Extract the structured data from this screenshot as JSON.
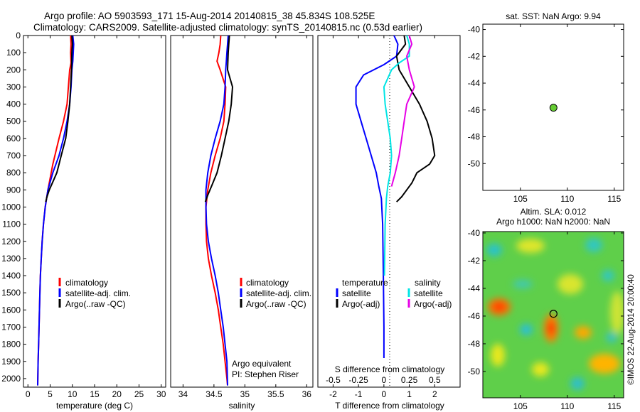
{
  "header": {
    "title_line1": "Argo profile: AO 5903593_171 15-Aug-2014 20140815_38 45.834S 108.525E",
    "title_line2": "Climatology: CARS2009. Satellite-adjusted climatology: synTS_20140815.nc (0.53d earlier)"
  },
  "chart_data": [
    {
      "id": "temperature",
      "type": "line",
      "xlabel": "temperature (deg C)",
      "ylabel": "",
      "xlim": [
        -1,
        31
      ],
      "ylim": [
        2050,
        0
      ],
      "xticks": [
        0,
        5,
        10,
        15,
        20,
        25,
        30
      ],
      "yticks": [
        0,
        100,
        200,
        300,
        400,
        500,
        600,
        700,
        800,
        900,
        1000,
        1100,
        1200,
        1300,
        1400,
        1500,
        1600,
        1700,
        1800,
        1900,
        2000
      ],
      "legend": [
        "climatology",
        "satellite-adj. clim.",
        "Argo(..raw -QC)"
      ],
      "series": [
        {
          "name": "climatology",
          "color": "#ff0000",
          "x": [
            9.6,
            9.7,
            9.6,
            9.7,
            9.4,
            8.8,
            8.0,
            7.0,
            5.6,
            4.5,
            3.9,
            3.5,
            3.2,
            3.0,
            2.8,
            2.7,
            2.6,
            2.5,
            2.4,
            2.3,
            2.2
          ],
          "y": [
            0,
            50,
            100,
            160,
            200,
            400,
            500,
            600,
            750,
            900,
            1000,
            1100,
            1200,
            1300,
            1400,
            1500,
            1600,
            1700,
            1800,
            1900,
            2040
          ]
        },
        {
          "name": "satellite-adj. clim.",
          "color": "#0000ff",
          "x": [
            10.1,
            10.3,
            10.2,
            10.1,
            9.9,
            9.7,
            9.4,
            8.8,
            8.0,
            7.0,
            5.6,
            4.5,
            3.9,
            3.5,
            3.2,
            3.0,
            2.8,
            2.7,
            2.6,
            2.5,
            2.4,
            2.3,
            2.2
          ],
          "y": [
            0,
            50,
            100,
            150,
            200,
            300,
            400,
            500,
            600,
            700,
            800,
            900,
            1000,
            1100,
            1200,
            1300,
            1400,
            1500,
            1600,
            1700,
            1800,
            1900,
            2040
          ]
        },
        {
          "name": "Argo(..raw -QC)",
          "color": "#000000",
          "x": [
            9.9,
            10.0,
            9.9,
            9.8,
            9.6,
            9.4,
            9.0,
            8.5,
            7.5,
            6.5,
            5.5,
            4.8,
            4.3,
            4.0
          ],
          "y": [
            0,
            50,
            100,
            200,
            300,
            400,
            500,
            600,
            700,
            800,
            860,
            900,
            940,
            970
          ]
        }
      ]
    },
    {
      "id": "salinity",
      "type": "line",
      "xlabel": "salinity",
      "xlim": [
        33.8,
        36.1
      ],
      "ylim": [
        2050,
        0
      ],
      "xticks": [
        34,
        34.5,
        35,
        35.5,
        36
      ],
      "legend": [
        "climatology",
        "satellite-adj. clim.",
        "Argo(..raw -QC)"
      ],
      "annotation": [
        "Argo equivalent",
        "PI: Stephen Riser"
      ],
      "series": [
        {
          "name": "climatology",
          "color": "#ff0000",
          "x": [
            34.61,
            34.6,
            34.58,
            34.55,
            34.6,
            34.69,
            34.68,
            34.66,
            34.6,
            34.52,
            34.45,
            34.4,
            34.37,
            34.37,
            34.38,
            34.41,
            34.46,
            34.52,
            34.57,
            34.61,
            34.65,
            34.68,
            34.71,
            34.72
          ],
          "y": [
            0,
            50,
            100,
            150,
            200,
            300,
            400,
            500,
            600,
            700,
            800,
            900,
            1000,
            1100,
            1200,
            1300,
            1400,
            1500,
            1600,
            1700,
            1800,
            1900,
            2000,
            2040
          ]
        },
        {
          "name": "satellite-adj. clim.",
          "color": "#0000ff",
          "x": [
            34.73,
            34.72,
            34.71,
            34.7,
            34.69,
            34.68,
            34.66,
            34.6,
            34.52,
            34.45,
            34.4,
            34.37,
            34.37,
            34.38,
            34.41,
            34.46,
            34.52,
            34.57,
            34.61,
            34.65,
            34.68,
            34.71,
            34.72
          ],
          "y": [
            0,
            50,
            100,
            150,
            200,
            300,
            400,
            500,
            600,
            700,
            800,
            900,
            1000,
            1100,
            1200,
            1300,
            1400,
            1500,
            1600,
            1700,
            1800,
            1900,
            2040
          ]
        },
        {
          "name": "Argo(..raw -QC)",
          "color": "#000000",
          "x": [
            34.75,
            34.74,
            34.73,
            34.72,
            34.76,
            34.8,
            34.78,
            34.74,
            34.68,
            34.62,
            34.55,
            34.47,
            34.4,
            34.36
          ],
          "y": [
            0,
            50,
            100,
            200,
            250,
            300,
            400,
            500,
            600,
            700,
            800,
            870,
            930,
            970
          ]
        }
      ]
    },
    {
      "id": "difference",
      "type": "line",
      "xlabel": "T difference from climatology",
      "x2label": "S difference from climatology",
      "xlim": [
        -2.6,
        3.0
      ],
      "ylim": [
        2050,
        0
      ],
      "xticks": [
        -2,
        -1,
        0,
        1,
        2
      ],
      "x2ticks": [
        "-0.5",
        "-0.25",
        "0",
        "0.25",
        "0.5"
      ],
      "legend_titles": [
        "temperature",
        "salinity"
      ],
      "legend": [
        "satellite",
        "Argo(-adj)",
        "satellite",
        "Argo(-adj)"
      ],
      "series": [
        {
          "name": "satellite",
          "group": "temperature",
          "color": "#0000ff",
          "x": [
            0.4,
            0.55,
            0.5,
            0.0,
            -0.8,
            -1.1,
            -1.1,
            -0.9,
            -0.7,
            -0.5,
            -0.3,
            -0.2,
            -0.1,
            -0.05,
            -0.02,
            0.0,
            0.0
          ],
          "y": [
            0,
            50,
            120,
            170,
            230,
            300,
            400,
            500,
            600,
            700,
            800,
            880,
            950,
            1100,
            1400,
            1700,
            1880
          ]
        },
        {
          "name": "Argo(-adj)",
          "group": "temperature",
          "color": "#000000",
          "x": [
            0.8,
            0.85,
            0.5,
            0.6,
            1.0,
            1.4,
            1.7,
            1.9,
            2.0,
            1.8,
            1.3,
            1.1,
            0.9,
            0.7,
            0.5
          ],
          "y": [
            0,
            50,
            120,
            200,
            300,
            400,
            500,
            600,
            700,
            750,
            800,
            860,
            900,
            940,
            970
          ]
        },
        {
          "name": "satellite",
          "group": "salinity",
          "color": "#00e5e5",
          "x": [
            0.9,
            1.0,
            1.0,
            0.6,
            0.3,
            0.0,
            0.05,
            0.15,
            0.25,
            0.3,
            0.25,
            0.15,
            0.1,
            0.05,
            0.02
          ],
          "y": [
            0,
            50,
            120,
            160,
            200,
            300,
            400,
            500,
            600,
            700,
            800,
            880,
            950,
            1100,
            1400
          ]
        },
        {
          "name": "Argo(-adj)",
          "group": "salinity",
          "color": "#e600e6",
          "x": [
            1.0,
            1.1,
            0.9,
            1.0,
            1.2,
            0.9,
            0.8,
            0.7,
            0.6,
            0.45,
            0.3
          ],
          "y": [
            0,
            50,
            120,
            200,
            300,
            400,
            500,
            600,
            700,
            800,
            880
          ]
        }
      ]
    },
    {
      "id": "sst-map",
      "type": "scatter",
      "title": "sat. SST: NaN Argo: 9.94",
      "xlim": [
        101,
        116
      ],
      "ylim": [
        -52,
        -39.6
      ],
      "xticks": [
        105,
        110,
        115
      ],
      "yticks": [
        -40,
        -42,
        -44,
        -46,
        -48,
        -50
      ],
      "points": [
        {
          "x": 108.525,
          "y": -45.834,
          "color": "#66cc33"
        }
      ]
    },
    {
      "id": "sla-map",
      "type": "heatmap",
      "title_line1": "Altim. SLA: 0.012",
      "title_line2": "Argo h1000: NaN h2000: NaN",
      "side_label": "©IMOS 22-Aug-2014 20:00:40",
      "xlim": [
        101,
        116
      ],
      "ylim": [
        -51.9,
        -39.9
      ],
      "xticks": [
        105,
        110,
        115
      ],
      "yticks": [
        -40,
        -42,
        -44,
        -46,
        -48,
        -50
      ],
      "points": [
        {
          "x": 108.525,
          "y": -45.834
        }
      ]
    }
  ]
}
